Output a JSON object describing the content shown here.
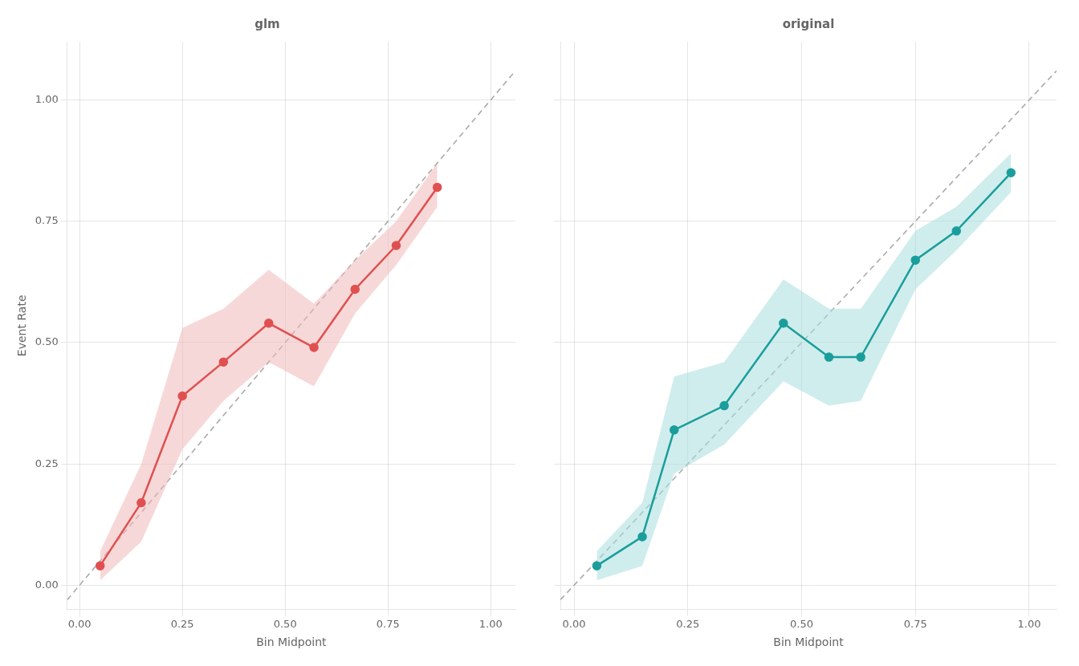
{
  "chart_data": [
    {
      "type": "line",
      "title": "glm",
      "xlabel": "Bin Midpoint",
      "ylabel": "Event Rate",
      "series": [
        {
          "x": [
            -0.03,
            1.06
          ],
          "values": [
            -0.03,
            1.06
          ],
          "color": "#aaaaaa",
          "line_style": "dashed",
          "marker": "none"
        },
        {
          "x": [
            0.05,
            0.15,
            0.25,
            0.35,
            0.46,
            0.57,
            0.67,
            0.77,
            0.87
          ],
          "values": [
            0.04,
            0.17,
            0.39,
            0.46,
            0.54,
            0.49,
            0.61,
            0.7,
            0.82
          ],
          "y_lo": [
            0.01,
            0.09,
            0.28,
            0.38,
            0.46,
            0.41,
            0.56,
            0.66,
            0.78
          ],
          "y_hi": [
            0.07,
            0.25,
            0.53,
            0.57,
            0.65,
            0.58,
            0.67,
            0.75,
            0.87
          ],
          "color": "#e05050",
          "band_color": "#f0b8b8",
          "line_style": "solid",
          "marker": "circle"
        }
      ],
      "xlim": [
        -0.03,
        1.06
      ],
      "ylim": [
        -0.05,
        1.12
      ],
      "xticks": [
        {
          "value": 0,
          "label": "0.00"
        },
        0.25,
        {
          "value": 0.5,
          "label": "0.50"
        },
        0.75,
        {
          "value": 1,
          "label": "1.00"
        }
      ],
      "yticks": [
        {
          "value": 0,
          "label": "0.00"
        },
        0.25,
        {
          "value": 0.5,
          "label": "0.50"
        },
        0.75,
        {
          "value": 1,
          "label": "1.00"
        }
      ],
      "grid": true
    },
    {
      "type": "line",
      "title": "original",
      "xlabel": "Bin Midpoint",
      "series": [
        {
          "x": [
            -0.03,
            1.06
          ],
          "values": [
            -0.03,
            1.06
          ],
          "color": "#aaaaaa",
          "line_style": "dashed",
          "marker": "none"
        },
        {
          "x": [
            0.05,
            0.15,
            0.22,
            0.33,
            0.46,
            0.56,
            0.63,
            0.75,
            0.84,
            0.96
          ],
          "values": [
            0.04,
            0.1,
            0.32,
            0.37,
            0.54,
            0.47,
            0.47,
            0.67,
            0.73,
            0.85
          ],
          "y_lo": [
            0.01,
            0.04,
            0.23,
            0.29,
            0.42,
            0.37,
            0.38,
            0.61,
            0.69,
            0.81
          ],
          "y_hi": [
            0.07,
            0.17,
            0.43,
            0.46,
            0.63,
            0.57,
            0.57,
            0.73,
            0.78,
            0.89
          ],
          "color": "#1a9e9c",
          "band_color": "#a8dedd",
          "line_style": "solid",
          "marker": "circle"
        }
      ],
      "xlim": [
        -0.03,
        1.06
      ],
      "ylim": [
        -0.05,
        1.12
      ],
      "xticks": [
        {
          "value": 0,
          "label": "0.00"
        },
        0.25,
        {
          "value": 0.5,
          "label": "0.50"
        },
        0.75,
        {
          "value": 1,
          "label": "1.00"
        }
      ],
      "yticks": [
        {
          "value": 0,
          "label": "0.00"
        },
        0.25,
        {
          "value": 0.5,
          "label": "0.50"
        },
        0.75,
        {
          "value": 1,
          "label": "1.00"
        }
      ],
      "grid": true,
      "tick_labels": "x"
    }
  ]
}
